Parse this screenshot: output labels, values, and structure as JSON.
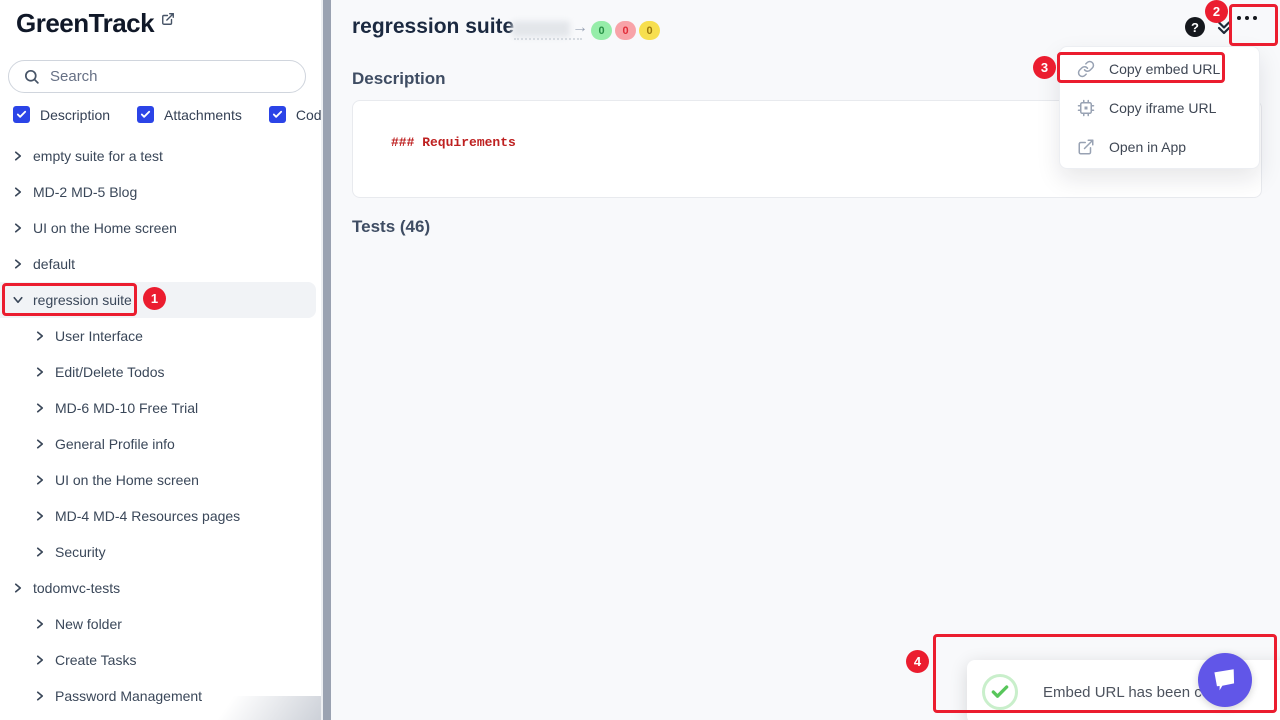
{
  "app": {
    "title": "GreenTrack"
  },
  "sidebar": {
    "search": {
      "placeholder": "Search"
    },
    "filters": [
      {
        "label": "Description",
        "checked": true
      },
      {
        "label": "Attachments",
        "checked": true
      },
      {
        "label": "Code",
        "checked": true
      }
    ],
    "tree": [
      {
        "label": "empty suite for a test",
        "level": 0,
        "expanded": false,
        "selected": false
      },
      {
        "label": "MD-2 MD-5 Blog",
        "level": 0,
        "expanded": false,
        "selected": false
      },
      {
        "label": "UI on the Home screen",
        "level": 0,
        "expanded": false,
        "selected": false
      },
      {
        "label": "default",
        "level": 0,
        "expanded": false,
        "selected": false
      },
      {
        "label": "regression suite",
        "level": 0,
        "expanded": true,
        "selected": true
      },
      {
        "label": "User Interface",
        "level": 1,
        "expanded": false,
        "selected": false
      },
      {
        "label": "Edit/Delete Todos",
        "level": 1,
        "expanded": false,
        "selected": false
      },
      {
        "label": "MD-6 MD-10 Free Trial",
        "level": 1,
        "expanded": false,
        "selected": false
      },
      {
        "label": "General Profile info",
        "level": 1,
        "expanded": false,
        "selected": false
      },
      {
        "label": "UI on the Home screen",
        "level": 1,
        "expanded": false,
        "selected": false
      },
      {
        "label": "MD-4 MD-4 Resources pages",
        "level": 1,
        "expanded": false,
        "selected": false
      },
      {
        "label": "Security",
        "level": 1,
        "expanded": false,
        "selected": false
      },
      {
        "label": "todomvc-tests",
        "level": 0,
        "expanded": false,
        "selected": false
      },
      {
        "label": "New folder",
        "level": 1,
        "expanded": false,
        "selected": false
      },
      {
        "label": "Create Tasks",
        "level": 1,
        "expanded": false,
        "selected": false
      },
      {
        "label": "Password Management",
        "level": 1,
        "expanded": false,
        "selected": false
      }
    ]
  },
  "main": {
    "title": "regression suite",
    "title_arrow": "→",
    "badges": [
      {
        "value": "0",
        "type": "green"
      },
      {
        "value": "0",
        "type": "red"
      },
      {
        "value": "0",
        "type": "yellow"
      }
    ],
    "help_label": "?",
    "description_heading": "Description",
    "description_code": "### Requirements",
    "tests_heading": "Tests (46)"
  },
  "menu": {
    "items": [
      {
        "label": "Copy embed URL",
        "icon": "link-icon"
      },
      {
        "label": "Copy iframe URL",
        "icon": "iframe-icon"
      },
      {
        "label": "Open in App",
        "icon": "external-link-icon"
      }
    ]
  },
  "toast": {
    "message": "Embed URL has been copied"
  },
  "annotations": {
    "steps": [
      "1",
      "2",
      "3",
      "4"
    ]
  },
  "colors": {
    "annotation_red": "#EB1D2F",
    "checkbox_blue": "#2B44E7",
    "chat_purple": "#6156E8",
    "badge_green_bg": "#96EDA9",
    "badge_red_bg": "#F8A3A8",
    "badge_yellow_bg": "#F7DF4F",
    "code_red": "#BE2020",
    "scrollbar_gray": "#9AA2B1",
    "main_bg": "#F8F9FB"
  }
}
